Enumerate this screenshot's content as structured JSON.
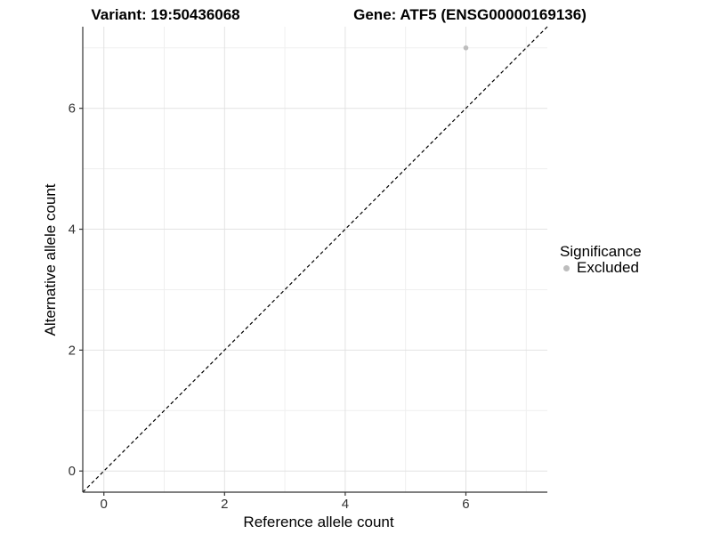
{
  "titles": {
    "variant": "Variant: 19:50436068",
    "gene": "Gene: ATF5 (ENSG00000169136)"
  },
  "axes": {
    "x_label": "Reference allele count",
    "y_label": "Alternative allele count",
    "x_tick_labels": [
      "0",
      "2",
      "4",
      "6"
    ],
    "y_tick_labels": [
      "0",
      "2",
      "4",
      "6"
    ]
  },
  "legend": {
    "title": "Significance",
    "items": [
      {
        "label": "Excluded",
        "color": "#bdbdbd"
      }
    ]
  },
  "colors": {
    "background": "#ffffff",
    "axis": "#333333",
    "grid_major": "#e2e2e2",
    "grid_minor": "#efefef",
    "reference_line": "#000000",
    "point_excluded": "#bdbdbd",
    "tick_label": "#333333",
    "title_text": "#000000"
  },
  "chart_data": {
    "type": "scatter",
    "title": "Variant: 19:50436068 | Gene: ATF5 (ENSG00000169136)",
    "xlabel": "Reference allele count",
    "ylabel": "Alternative allele count",
    "xlim": [
      -0.35,
      7.35
    ],
    "ylim": [
      -0.35,
      7.35
    ],
    "x_major_ticks": [
      0,
      2,
      4,
      6
    ],
    "y_major_ticks": [
      0,
      2,
      4,
      6
    ],
    "x_minor_ticks": [
      1,
      3,
      5,
      7
    ],
    "y_minor_ticks": [
      1,
      3,
      5,
      7
    ],
    "grid": true,
    "legend_position": "right",
    "series": [
      {
        "name": "Excluded",
        "color": "#bdbdbd",
        "points": [
          {
            "x": 6,
            "y": 7
          }
        ]
      }
    ],
    "reference_line": {
      "type": "identity",
      "slope": 1,
      "intercept": 0,
      "style": "dashed"
    }
  }
}
